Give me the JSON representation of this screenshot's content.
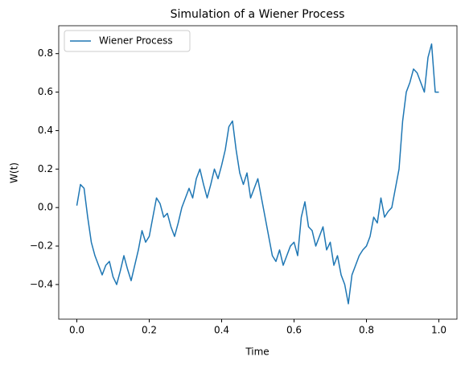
{
  "chart_data": {
    "type": "line",
    "title": "Simulation of a Wiener Process",
    "xlabel": "Time",
    "ylabel": "W(t)",
    "x": [
      0,
      0.01,
      0.02,
      0.03,
      0.04,
      0.05,
      0.06,
      0.07,
      0.08,
      0.09,
      0.1,
      0.11,
      0.12,
      0.13,
      0.14,
      0.15,
      0.16,
      0.17,
      0.18,
      0.19,
      0.2,
      0.21,
      0.22,
      0.23,
      0.24,
      0.25,
      0.26,
      0.27,
      0.28,
      0.29,
      0.3,
      0.31,
      0.32,
      0.33,
      0.34,
      0.35,
      0.36,
      0.37,
      0.38,
      0.39,
      0.4,
      0.41,
      0.42,
      0.43,
      0.44,
      0.45,
      0.46,
      0.47,
      0.48,
      0.49,
      0.5,
      0.51,
      0.52,
      0.53,
      0.54,
      0.55,
      0.56,
      0.57,
      0.58,
      0.59,
      0.6,
      0.61,
      0.62,
      0.63,
      0.64,
      0.65,
      0.66,
      0.67,
      0.68,
      0.69,
      0.7,
      0.71,
      0.72,
      0.73,
      0.74,
      0.75,
      0.76,
      0.77,
      0.78,
      0.79,
      0.8,
      0.81,
      0.82,
      0.83,
      0.84,
      0.85,
      0.86,
      0.87,
      0.88,
      0.89,
      0.9,
      0.91,
      0.92,
      0.93,
      0.94,
      0.95,
      0.96,
      0.97,
      0.98,
      0.99,
      1
    ],
    "series": [
      {
        "name": "Wiener Process",
        "color": "#1f77b4",
        "values": [
          0.01,
          0.12,
          0.1,
          -0.05,
          -0.18,
          -0.25,
          -0.3,
          -0.35,
          -0.3,
          -0.28,
          -0.36,
          -0.4,
          -0.33,
          -0.25,
          -0.32,
          -0.38,
          -0.3,
          -0.22,
          -0.12,
          -0.18,
          -0.15,
          -0.05,
          0.05,
          0.02,
          -0.05,
          -0.03,
          -0.1,
          -0.15,
          -0.08,
          0,
          0.05,
          0.1,
          0.05,
          0.15,
          0.2,
          0.12,
          0.05,
          0.12,
          0.2,
          0.15,
          0.22,
          0.3,
          0.42,
          0.45,
          0.3,
          0.18,
          0.12,
          0.18,
          0.05,
          0.1,
          0.15,
          0.05,
          -0.05,
          -0.15,
          -0.25,
          -0.28,
          -0.22,
          -0.3,
          -0.25,
          -0.2,
          -0.18,
          -0.25,
          -0.05,
          0.03,
          -0.1,
          -0.12,
          -0.2,
          -0.15,
          -0.1,
          -0.22,
          -0.18,
          -0.3,
          -0.25,
          -0.35,
          -0.4,
          -0.5,
          -0.35,
          -0.3,
          -0.25,
          -0.22,
          -0.2,
          -0.15,
          -0.05,
          -0.08,
          0.05,
          -0.05,
          -0.02,
          0,
          0.1,
          0.2,
          0.45,
          0.6,
          0.65,
          0.72,
          0.7,
          0.65,
          0.6,
          0.78,
          0.85,
          0.6,
          0.6
        ]
      }
    ],
    "xlim": [
      -0.05,
      1.05
    ],
    "xticks": [
      {
        "value": 0,
        "label": "0.0"
      },
      0.2,
      0.4,
      0.6,
      0.8,
      {
        "value": 1,
        "label": "1.0"
      }
    ],
    "ylim": [
      -0.58,
      0.945
    ],
    "yticks": [
      {
        "value": -0.4,
        "label": "−0.4"
      },
      {
        "value": -0.2,
        "label": "−0.2"
      },
      {
        "value": 0,
        "label": "0.0"
      },
      0.2,
      0.4,
      0.6,
      0.8
    ],
    "grid": false,
    "legend": "upper left"
  }
}
